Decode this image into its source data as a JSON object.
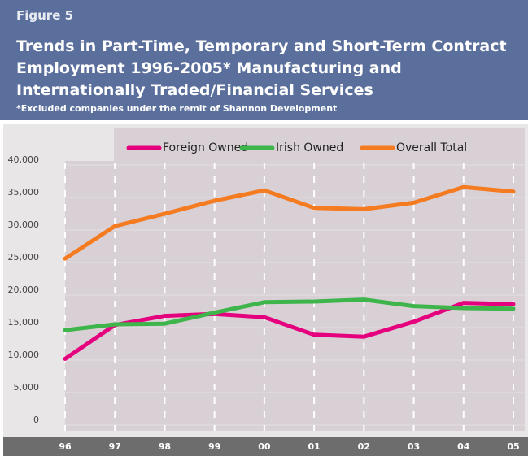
{
  "chart_data": {
    "type": "line",
    "figure": "Figure 5",
    "title": "Trends in Part-Time, Temporary and Short-Term Contract Employment 1996-2005* Manufacturing and Internationally Traded/Financial Services",
    "subtitle": "*Excluded companies under the remit of Shannon Development",
    "categories": [
      "96",
      "97",
      "98",
      "99",
      "00",
      "01",
      "02",
      "03",
      "04",
      "05"
    ],
    "series": [
      {
        "name": "Foreign Owned",
        "color": "#e5007e",
        "values": [
          10200,
          15400,
          16800,
          17100,
          16600,
          13900,
          13600,
          15900,
          18800,
          18600
        ]
      },
      {
        "name": "Irish Owned",
        "color": "#3db54a",
        "values": [
          14600,
          15500,
          15600,
          17300,
          18900,
          19000,
          19300,
          18300,
          18000,
          17900
        ]
      },
      {
        "name": "Overall Total",
        "color": "#f47b20",
        "values": [
          25600,
          30600,
          32500,
          34500,
          36100,
          33400,
          33200,
          34200,
          36600,
          35900
        ]
      }
    ],
    "ylim": [
      0,
      40000
    ],
    "yticks": [
      0,
      {
        "value": 5000,
        "label": "5,000"
      },
      {
        "value": 10000,
        "label": "10,000"
      },
      {
        "value": 15000,
        "label": "15,000"
      },
      {
        "value": 20000,
        "label": "20,000"
      },
      {
        "value": 25000,
        "label": "25,000"
      },
      {
        "value": 30000,
        "label": "30,000"
      },
      {
        "value": 35000,
        "label": "35,000"
      },
      {
        "value": 40000,
        "label": "40,000"
      }
    ],
    "grid": true
  }
}
